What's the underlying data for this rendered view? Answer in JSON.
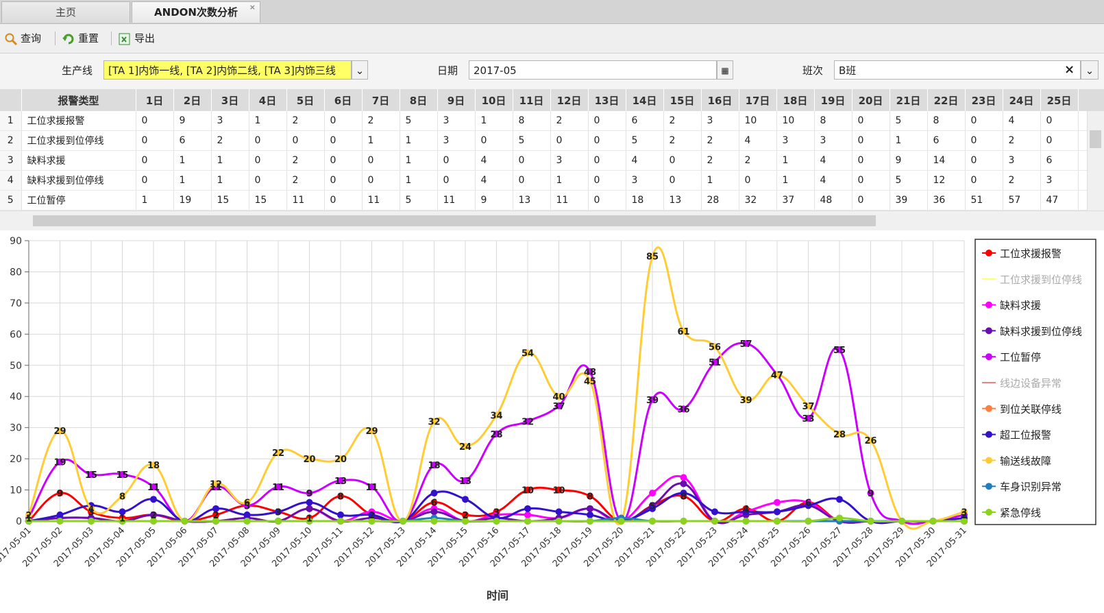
{
  "tabs": [
    "主页",
    "ANDON次数分析"
  ],
  "toolbar": [
    "查询",
    "重置",
    "导出"
  ],
  "filters": {
    "line_label": "生产线",
    "line_value": "[TA 1]内饰一线, [TA 2]内饰二线, [TA 3]内饰三线",
    "date_label": "日期",
    "date_value": "2017-05",
    "shift_label": "班次",
    "shift_value": "B班"
  },
  "table": {
    "header": [
      "报警类型",
      "1日",
      "2日",
      "3日",
      "4日",
      "5日",
      "6日",
      "7日",
      "8日",
      "9日",
      "10日",
      "11日",
      "12日",
      "13日",
      "14日",
      "15日",
      "16日",
      "17日",
      "18日",
      "19日",
      "20日",
      "21日",
      "22日",
      "23日",
      "24日",
      "25日"
    ],
    "rows": [
      [
        1,
        "工位求援报警",
        0,
        9,
        3,
        1,
        2,
        0,
        2,
        5,
        3,
        1,
        8,
        2,
        0,
        6,
        2,
        3,
        10,
        10,
        8,
        0,
        5,
        8,
        0,
        4,
        0
      ],
      [
        2,
        "工位求援到位停线",
        0,
        6,
        2,
        0,
        0,
        0,
        1,
        1,
        3,
        0,
        5,
        0,
        0,
        5,
        2,
        2,
        4,
        3,
        3,
        0,
        1,
        6,
        0,
        2,
        0
      ],
      [
        3,
        "缺料求援",
        0,
        1,
        1,
        0,
        2,
        0,
        0,
        1,
        0,
        4,
        0,
        3,
        0,
        4,
        0,
        2,
        2,
        1,
        4,
        0,
        9,
        14,
        0,
        3,
        6
      ],
      [
        4,
        "缺料求援到位停线",
        0,
        1,
        1,
        0,
        2,
        0,
        0,
        1,
        0,
        4,
        0,
        1,
        0,
        3,
        0,
        1,
        0,
        1,
        4,
        0,
        5,
        12,
        0,
        2,
        3
      ],
      [
        5,
        "工位暂停",
        1,
        19,
        15,
        15,
        11,
        0,
        11,
        5,
        11,
        9,
        13,
        11,
        0,
        18,
        13,
        28,
        32,
        37,
        48,
        0,
        39,
        36,
        51,
        57,
        47
      ]
    ]
  },
  "chart_data": {
    "type": "line",
    "x_title": "时间",
    "categories": [
      "2017-05-01",
      "2017-05-02",
      "2017-05-03",
      "2017-05-04",
      "2017-05-05",
      "2017-05-06",
      "2017-05-07",
      "2017-05-08",
      "2017-05-09",
      "2017-05-10",
      "2017-05-11",
      "2017-05-12",
      "2017-05-13",
      "2017-05-14",
      "2017-05-15",
      "2017-05-16",
      "2017-05-17",
      "2017-05-18",
      "2017-05-19",
      "2017-05-20",
      "2017-05-21",
      "2017-05-22",
      "2017-05-23",
      "2017-05-24",
      "2017-05-25",
      "2017-05-26",
      "2017-05-27",
      "2017-05-28",
      "2017-05-29",
      "2017-05-30",
      "2017-05-31"
    ],
    "ylim": [
      0,
      90
    ],
    "yticks": [
      0,
      10,
      20,
      30,
      40,
      50,
      60,
      70,
      80,
      90
    ],
    "grid": true,
    "legend": "right",
    "series": [
      {
        "name": "工位求援报警",
        "color": "#ff0000",
        "labels": true,
        "values": [
          0,
          9,
          3,
          1,
          2,
          0,
          2,
          5,
          3,
          1,
          8,
          2,
          0,
          6,
          2,
          3,
          10,
          10,
          8,
          0,
          5,
          8,
          0,
          4,
          0,
          6,
          0,
          0,
          0,
          0,
          0
        ]
      },
      {
        "name": "工位求援到位停线",
        "color": "#ffff66",
        "visible": false
      },
      {
        "name": "缺料求援",
        "color": "#ff00ff",
        "values": [
          0,
          1,
          1,
          0,
          2,
          0,
          0,
          1,
          0,
          4,
          0,
          3,
          0,
          4,
          0,
          2,
          2,
          1,
          4,
          0,
          9,
          14,
          0,
          3,
          6,
          6,
          0,
          0,
          0,
          0,
          0
        ]
      },
      {
        "name": "缺料求援到位停线",
        "color": "#6a0dad",
        "values": [
          0,
          1,
          1,
          0,
          2,
          0,
          0,
          1,
          0,
          4,
          0,
          1,
          0,
          3,
          0,
          1,
          0,
          1,
          4,
          0,
          5,
          12,
          0,
          2,
          3,
          5,
          0,
          0,
          0,
          0,
          0
        ]
      },
      {
        "name": "工位暂停",
        "color": "#cc00ff",
        "labels": true,
        "values": [
          1,
          19,
          15,
          15,
          11,
          0,
          11,
          5,
          11,
          9,
          13,
          11,
          0,
          18,
          13,
          28,
          32,
          37,
          48,
          0,
          39,
          36,
          51,
          57,
          47,
          33,
          55,
          9,
          0,
          0,
          2
        ]
      },
      {
        "name": "线边设备异常",
        "color": "#f08080",
        "visible": false
      },
      {
        "name": "到位关联停线",
        "color": "#ff7f3f",
        "values": [
          0,
          0,
          0,
          0,
          0,
          0,
          0,
          0,
          0,
          0,
          0,
          0,
          0,
          0,
          0,
          0,
          0,
          0,
          0,
          0,
          0,
          0,
          0,
          0,
          0,
          0,
          0,
          0,
          0,
          0,
          0
        ]
      },
      {
        "name": "超工位报警",
        "color": "#3311cc",
        "values": [
          0,
          2,
          5,
          3,
          7,
          0,
          4,
          2,
          3,
          6,
          2,
          2,
          0,
          9,
          7,
          1,
          4,
          3,
          2,
          0,
          4,
          9,
          3,
          3,
          3,
          5,
          7,
          0,
          0,
          0,
          1
        ]
      },
      {
        "name": "输送线故障",
        "color": "#ffcc33",
        "labels": true,
        "values": [
          2,
          29,
          4,
          8,
          18,
          0,
          12,
          6,
          22,
          20,
          20,
          29,
          0,
          32,
          24,
          34,
          54,
          40,
          45,
          0,
          85,
          61,
          56,
          39,
          47,
          37,
          28,
          26,
          0,
          0,
          3
        ]
      },
      {
        "name": "车身识别异常",
        "color": "#1e7fc0",
        "values": [
          0,
          0,
          0,
          0,
          0,
          0,
          0,
          0,
          0,
          0,
          0,
          0,
          0,
          1,
          0,
          0,
          0,
          0,
          0,
          1,
          0,
          0,
          0,
          0,
          0,
          0,
          0,
          0,
          0,
          0,
          0
        ]
      },
      {
        "name": "紧急停线",
        "color": "#8cd320",
        "values": [
          0,
          0,
          0,
          0,
          0,
          0,
          0,
          0,
          0,
          0,
          0,
          0,
          0,
          0,
          0,
          0,
          0,
          0,
          0,
          0,
          0,
          0,
          0,
          0,
          0,
          0,
          1,
          0,
          0,
          0,
          0
        ]
      }
    ]
  }
}
